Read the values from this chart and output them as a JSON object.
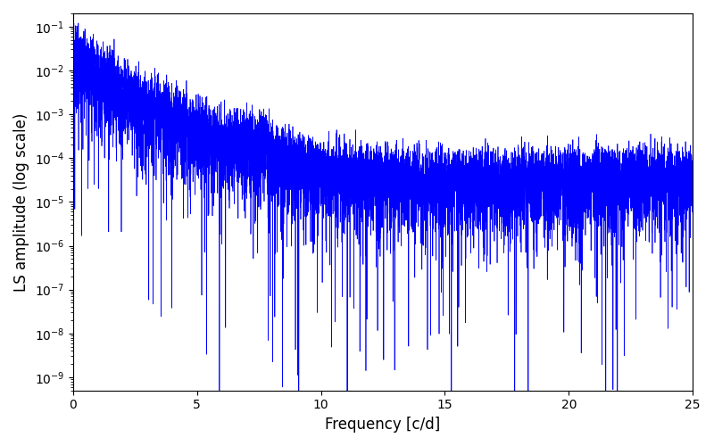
{
  "xlabel": "Frequency [c/d]",
  "ylabel": "LS amplitude (log scale)",
  "line_color": "#0000ff",
  "xlim": [
    0,
    25
  ],
  "ylim": [
    5e-10,
    0.2
  ],
  "background_color": "#ffffff",
  "figsize": [
    8.0,
    5.0
  ],
  "dpi": 100,
  "seed": 42,
  "n_points": 8000,
  "freq_max": 25.0,
  "linewidth": 0.5
}
